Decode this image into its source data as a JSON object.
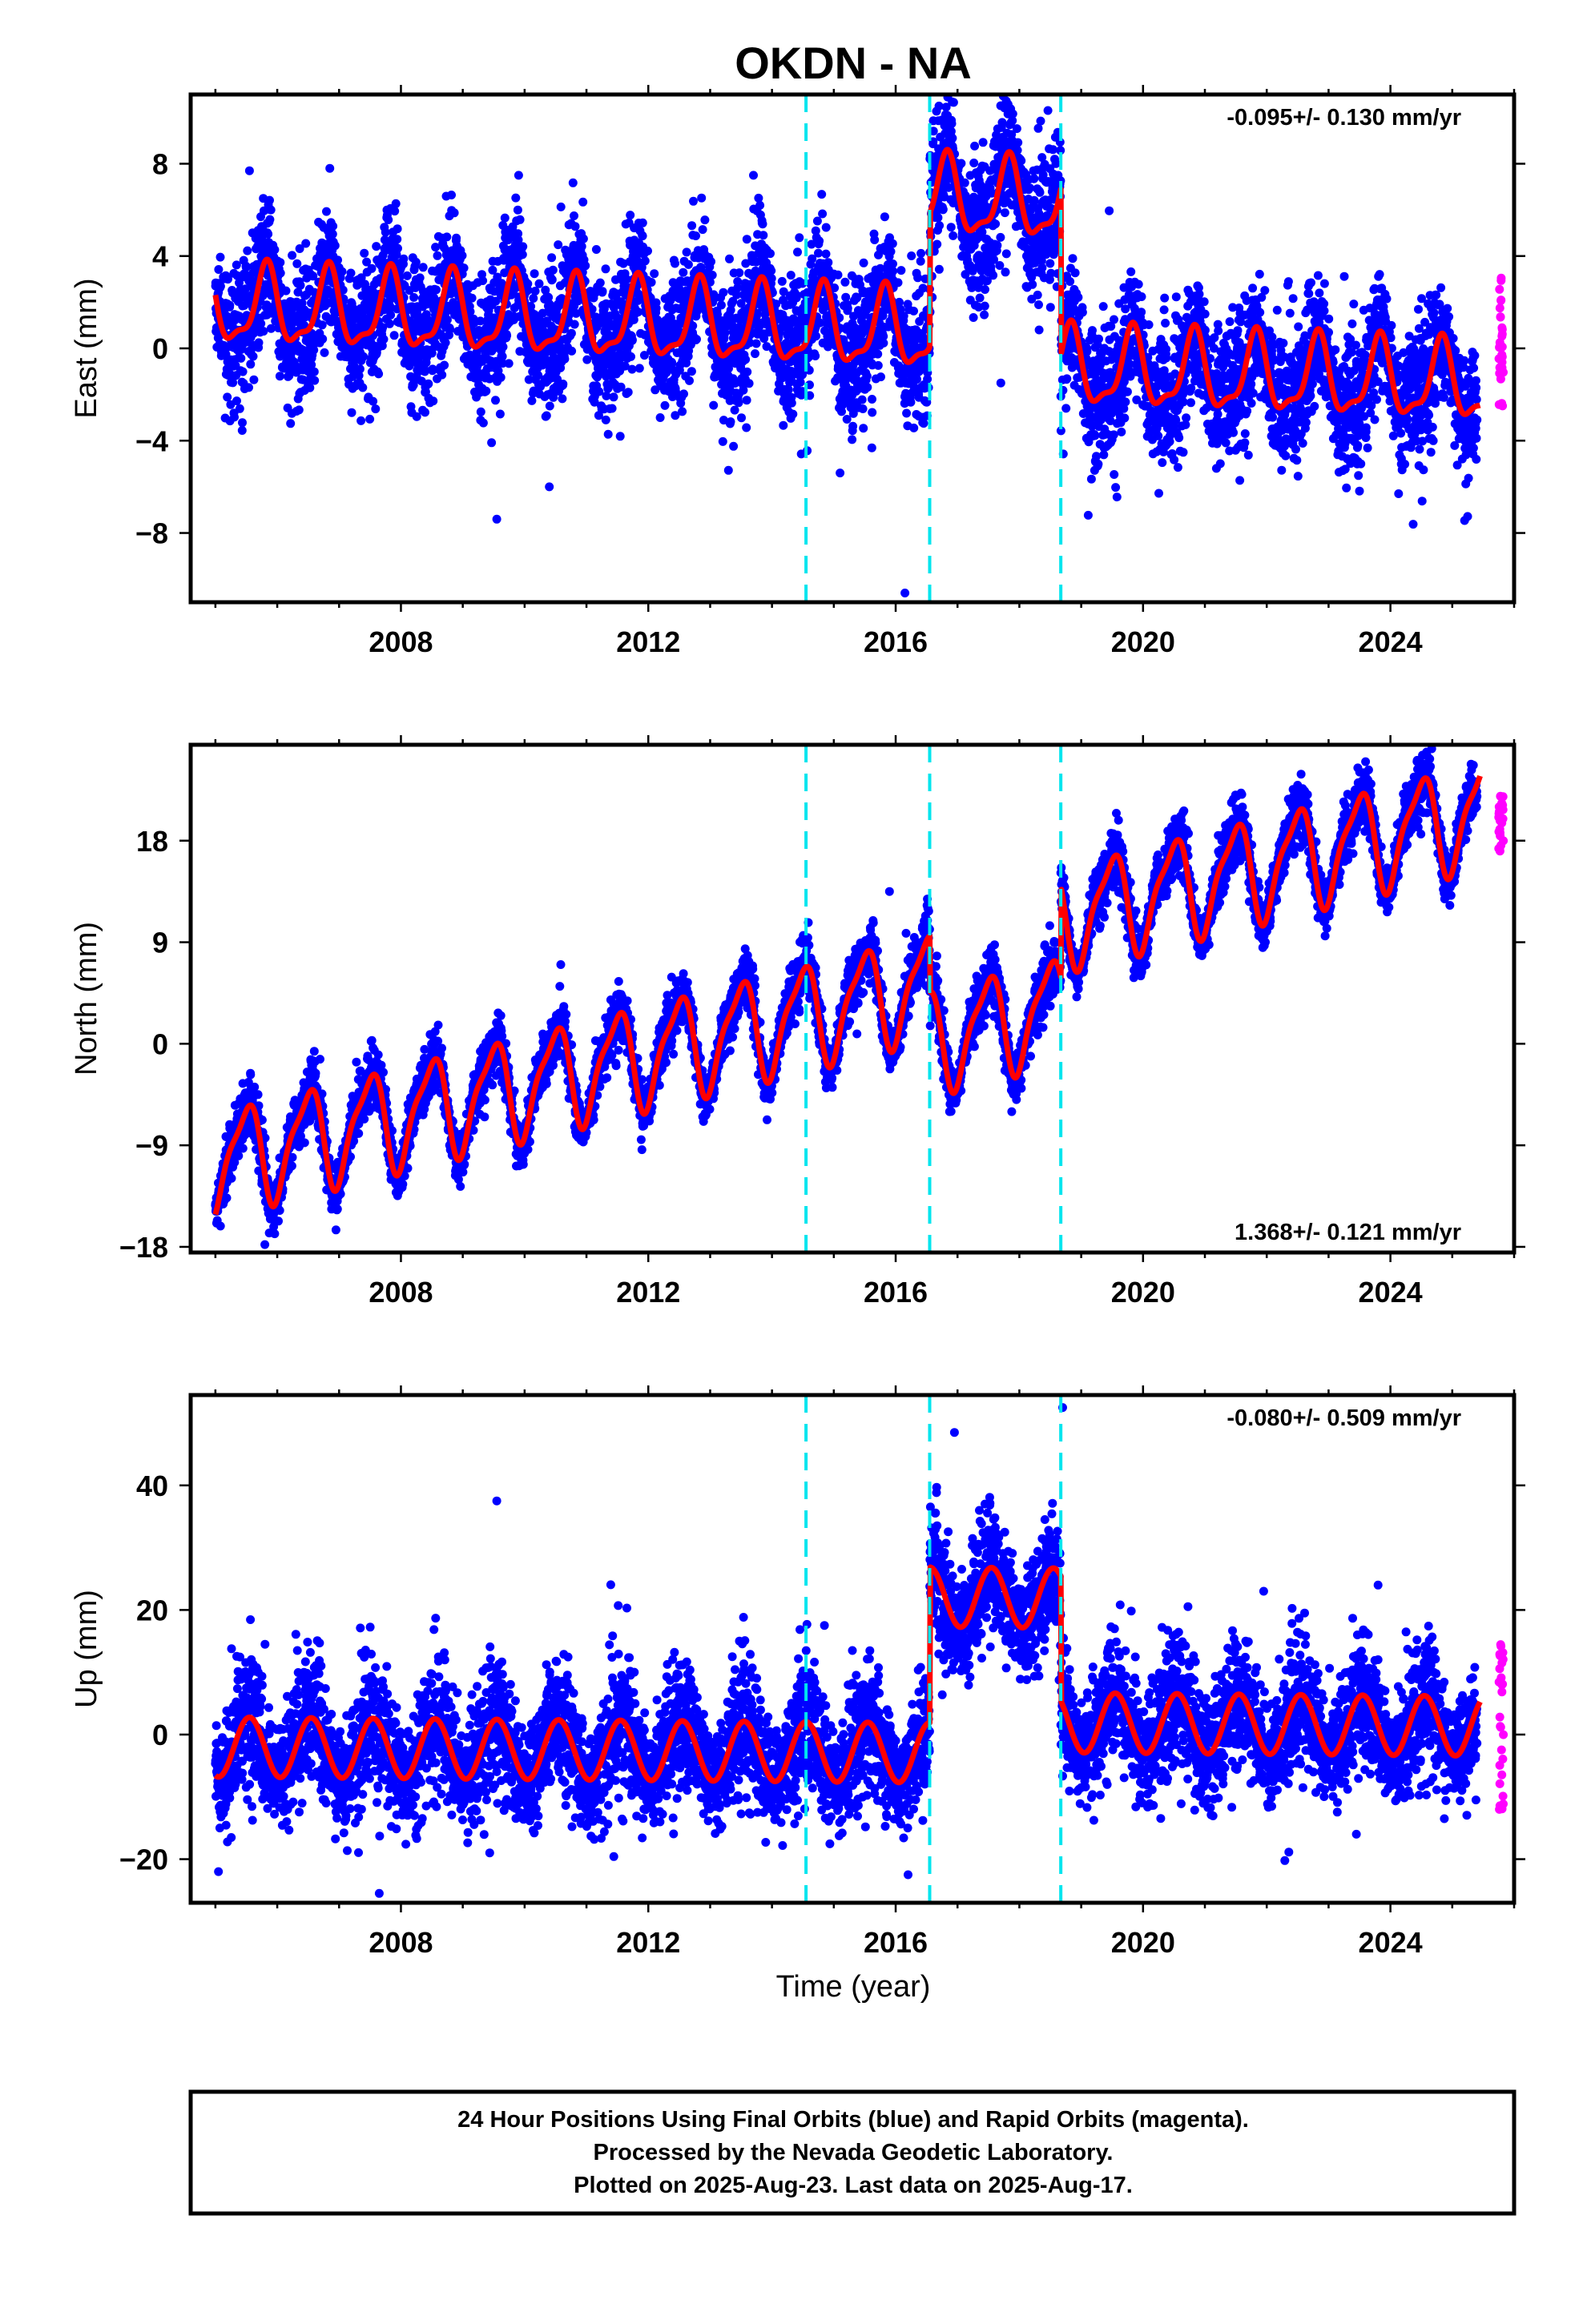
{
  "title": "OKDN - NA",
  "xlabel": "Time (year)",
  "caption_lines": [
    "24 Hour Positions Using Final Orbits (blue) and Rapid Orbits (magenta).",
    "Processed by the Nevada Geodetic Laboratory.",
    "Plotted on 2025-Aug-23. Last data on 2025-Aug-17."
  ],
  "colors": {
    "final_orbits": "#0000ff",
    "rapid_orbits": "#ff00ff",
    "model": "#ff0000",
    "offsets": "#00e5ee"
  },
  "chart_data": [
    {
      "type": "scatter",
      "component": "east",
      "ylabel": "East (mm)",
      "rate_label": "-0.095+/- 0.130 mm/yr",
      "rate_position": "top-right",
      "xlim": [
        2004.6,
        2026.0
      ],
      "ylim": [
        -11.0,
        11.0
      ],
      "xticks": [
        2008,
        2012,
        2016,
        2020,
        2024
      ],
      "yticks": [
        -8,
        -4,
        0,
        4,
        8
      ],
      "tick_labels_y": [
        "−8",
        "−4",
        "0",
        "4",
        "8"
      ],
      "offset_epochs": [
        2014.55,
        2016.55,
        2018.67
      ],
      "data_start": 2005.0,
      "final_end": 2025.4,
      "data_end": 2025.63,
      "model": {
        "intercept": 1.8,
        "intercept_epoch": 2005.0,
        "rate": -0.095,
        "annual_amplitude": 1.6,
        "annual_phase_year": 0.82,
        "semiannual_amplitude": 0.55,
        "semiannual_phase_year": 0.35,
        "steps": [
          {
            "epoch": 2016.55,
            "value": 5.8
          },
          {
            "epoch": 2018.67,
            "value": -7.2
          }
        ]
      },
      "scatter_sigma": 1.3,
      "outliers": [
        {
          "x": 2009.55,
          "y": -7.4
        },
        {
          "x": 2010.4,
          "y": -6.0
        },
        {
          "x": 2006.85,
          "y": 7.8
        },
        {
          "x": 2013.7,
          "y": 7.5
        },
        {
          "x": 2016.15,
          "y": -10.6
        },
        {
          "x": 2016.7,
          "y": 10.5
        },
        {
          "x": 2017.7,
          "y": -1.5
        },
        {
          "x": 2015.1,
          "y": -5.4
        },
        {
          "x": 2005.3,
          "y": -2.8
        }
      ],
      "rapid_range": [
        -2.5,
        3.1
      ]
    },
    {
      "type": "scatter",
      "component": "north",
      "ylabel": "North (mm)",
      "rate_label": "1.368+/- 0.121 mm/yr",
      "rate_position": "bottom-right",
      "xlim": [
        2004.6,
        2026.0
      ],
      "ylim": [
        -18.5,
        26.5
      ],
      "xticks": [
        2008,
        2012,
        2016,
        2020,
        2024
      ],
      "yticks": [
        -18,
        -9,
        0,
        9,
        18
      ],
      "tick_labels_y": [
        "−18",
        "−9",
        "0",
        "9",
        "18"
      ],
      "offset_epochs": [
        2014.55,
        2016.55,
        2018.67
      ],
      "data_start": 2005.0,
      "final_end": 2025.4,
      "data_end": 2025.63,
      "model": {
        "intercept": -10.5,
        "intercept_epoch": 2005.0,
        "rate": 1.368,
        "annual_amplitude": 4.3,
        "annual_phase_year": 0.48,
        "semiannual_amplitude": 1.2,
        "semiannual_phase_year": 0.15,
        "steps": [
          {
            "epoch": 2016.55,
            "value": -5.0
          },
          {
            "epoch": 2018.67,
            "value": 8.0
          }
        ]
      },
      "scatter_sigma": 1.1,
      "outliers": [
        {
          "x": 2015.9,
          "y": 13.5
        },
        {
          "x": 2005.8,
          "y": -17.8
        },
        {
          "x": 2006.95,
          "y": -16.5
        }
      ],
      "rapid_range": [
        17.0,
        22.0
      ]
    },
    {
      "type": "scatter",
      "component": "up",
      "ylabel": "Up (mm)",
      "rate_label": "-0.080+/- 0.509 mm/yr",
      "rate_position": "top-right",
      "xlim": [
        2004.6,
        2026.0
      ],
      "ylim": [
        -27.0,
        54.5
      ],
      "xticks": [
        2008,
        2012,
        2016,
        2020,
        2024
      ],
      "yticks": [
        -20,
        0,
        20,
        40
      ],
      "tick_labels_y": [
        "−20",
        "0",
        "20",
        "40"
      ],
      "offset_epochs": [
        2014.55,
        2016.55,
        2018.67
      ],
      "data_start": 2005.0,
      "final_end": 2025.4,
      "data_end": 2025.63,
      "model": {
        "intercept": -2.0,
        "intercept_epoch": 2005.0,
        "rate": -0.08,
        "annual_amplitude": 4.8,
        "annual_phase_year": 0.55,
        "semiannual_amplitude": 0.0,
        "semiannual_phase_year": 0.0,
        "steps": [
          {
            "epoch": 2016.55,
            "value": 25.0
          },
          {
            "epoch": 2018.67,
            "value": -20.0
          }
        ]
      },
      "scatter_sigma": 4.5,
      "outliers": [
        {
          "x": 2009.55,
          "y": 37.5
        },
        {
          "x": 2007.65,
          "y": -25.5
        },
        {
          "x": 2018.7,
          "y": 52.5
        },
        {
          "x": 2016.95,
          "y": 48.5
        },
        {
          "x": 2021.95,
          "y": 23.0
        },
        {
          "x": 2023.8,
          "y": 24.0
        },
        {
          "x": 2005.05,
          "y": -22.0
        },
        {
          "x": 2016.2,
          "y": -22.5
        },
        {
          "x": 2023.45,
          "y": -16.0
        }
      ],
      "rapid_range": [
        -13.5,
        16.0
      ]
    }
  ]
}
